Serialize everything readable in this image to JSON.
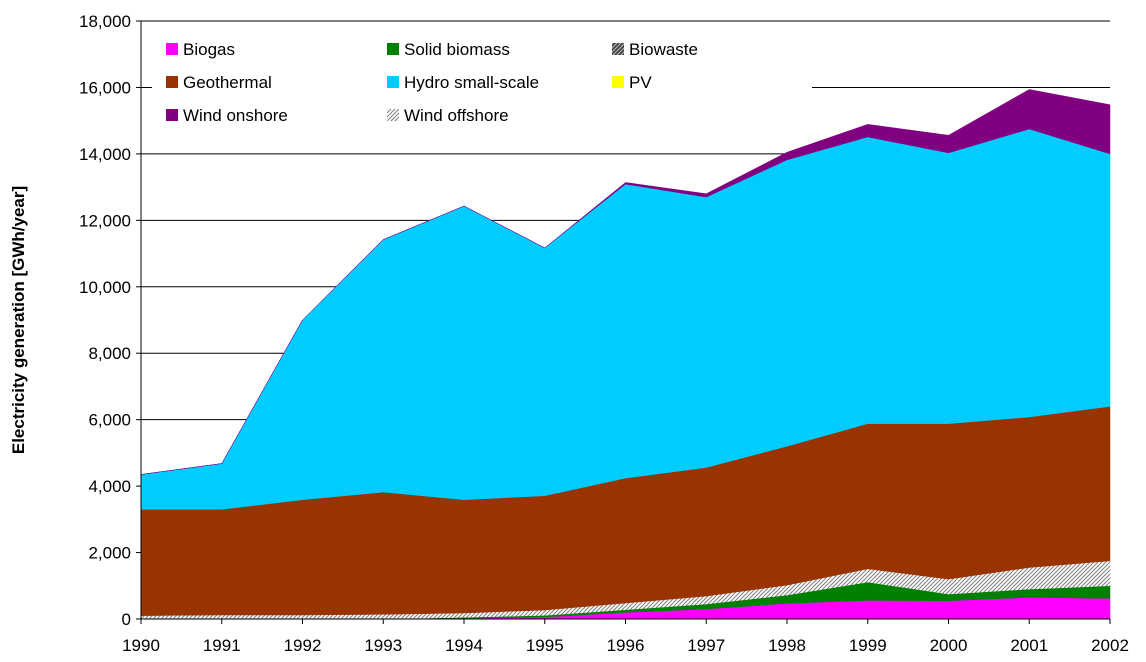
{
  "chart_data": {
    "type": "area",
    "stacked": true,
    "title": "",
    "xlabel": "",
    "ylabel": "Electricity generation [GWh/year]",
    "ylim": [
      0,
      18000
    ],
    "yticks": [
      0,
      2000,
      4000,
      6000,
      8000,
      10000,
      12000,
      14000,
      16000,
      18000
    ],
    "ytick_labels": [
      "0",
      "2,000",
      "4,000",
      "6,000",
      "8,000",
      "10,000",
      "12,000",
      "14,000",
      "16,000",
      "18,000"
    ],
    "x": [
      "1990",
      "1991",
      "1992",
      "1993",
      "1994",
      "1995",
      "1996",
      "1997",
      "1998",
      "1999",
      "2000",
      "2001",
      "2002"
    ],
    "grid": "horizontal",
    "legend_position": "top-left inside plot, 3 columns",
    "series": [
      {
        "name": "Biogas",
        "color": "#ff00ff",
        "pattern": "solid",
        "values": [
          0,
          0,
          0,
          0,
          20,
          60,
          200,
          300,
          470,
          560,
          550,
          650,
          620
        ]
      },
      {
        "name": "Solid biomass",
        "color": "#008000",
        "pattern": "solid",
        "values": [
          0,
          0,
          0,
          0,
          30,
          50,
          80,
          150,
          250,
          550,
          200,
          250,
          380
        ]
      },
      {
        "name": "Biowaste",
        "color": "#606060",
        "pattern": "hatch-dark",
        "values": [
          0,
          0,
          0,
          0,
          0,
          0,
          0,
          0,
          0,
          0,
          0,
          0,
          0
        ]
      },
      {
        "name": "Wind offshore",
        "color": "#a0a0a0",
        "pattern": "hatch-light",
        "values": [
          100,
          120,
          120,
          140,
          130,
          160,
          200,
          240,
          300,
          400,
          450,
          650,
          750
        ]
      },
      {
        "name": "Geothermal",
        "color": "#993300",
        "pattern": "solid",
        "values": [
          3200,
          3180,
          3470,
          3680,
          3410,
          3440,
          3760,
          3870,
          4180,
          4370,
          4680,
          4530,
          4650
        ]
      },
      {
        "name": "Hydro small-scale",
        "color": "#00ccff",
        "pattern": "solid",
        "values": [
          1050,
          1380,
          5410,
          7600,
          8840,
          7460,
          8850,
          8140,
          8620,
          8630,
          8150,
          8670,
          7600
        ]
      },
      {
        "name": "PV",
        "color": "#ffff00",
        "pattern": "solid",
        "values": [
          0,
          0,
          0,
          0,
          0,
          0,
          0,
          0,
          0,
          0,
          0,
          0,
          0
        ]
      },
      {
        "name": "Wind onshore",
        "color": "#800080",
        "pattern": "solid",
        "values": [
          0,
          0,
          0,
          0,
          0,
          0,
          50,
          100,
          230,
          380,
          530,
          1190,
          1480
        ]
      }
    ],
    "legend_order": [
      "Biogas",
      "Solid biomass",
      "Biowaste",
      "Geothermal",
      "Hydro small-scale",
      "PV",
      "Wind onshore",
      "Wind offshore"
    ]
  }
}
